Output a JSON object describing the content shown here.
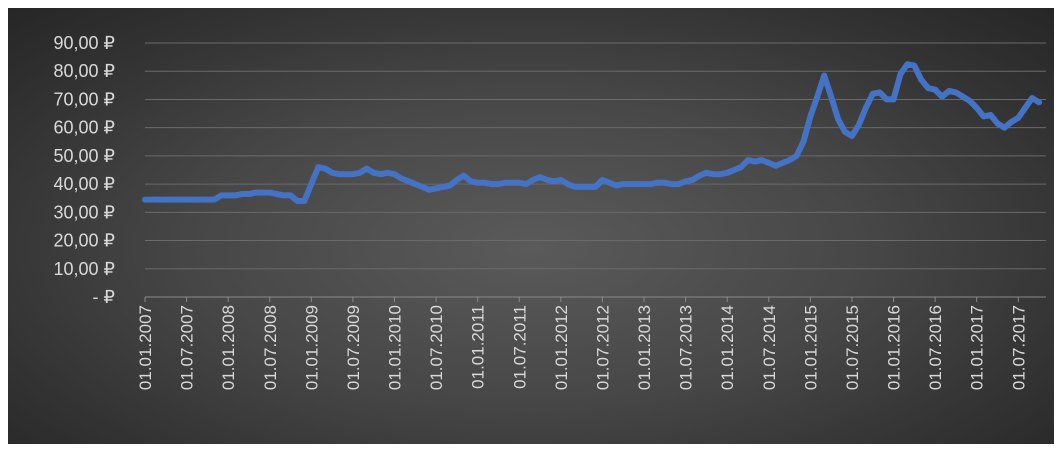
{
  "chart_data": {
    "type": "line",
    "title": "",
    "xlabel": "",
    "ylabel": "",
    "ylim": [
      0,
      90
    ],
    "grid": true,
    "legend": "none",
    "line_color": "#4472c4",
    "background_color": "#3c3c3c",
    "y_ticks": [
      {
        "value": 0,
        "label": "-   ₽"
      },
      {
        "value": 10,
        "label": "10,00 ₽"
      },
      {
        "value": 20,
        "label": "20,00 ₽"
      },
      {
        "value": 30,
        "label": "30,00 ₽"
      },
      {
        "value": 40,
        "label": "40,00 ₽"
      },
      {
        "value": 50,
        "label": "50,00 ₽"
      },
      {
        "value": 60,
        "label": "60,00 ₽"
      },
      {
        "value": 70,
        "label": "70,00 ₽"
      },
      {
        "value": 80,
        "label": "80,00 ₽"
      },
      {
        "value": 90,
        "label": "90,00 ₽"
      }
    ],
    "x_tick_labels": [
      "01.01.2007",
      "01.07.2007",
      "01.01.2008",
      "01.07.2008",
      "01.01.2009",
      "01.07.2009",
      "01.01.2010",
      "01.07.2010",
      "01.01.2011",
      "01.07.2011",
      "01.01.2012",
      "01.07.2012",
      "01.01.2013",
      "01.07.2013",
      "01.01.2014",
      "01.07.2014",
      "01.01.2015",
      "01.07.2015",
      "01.01.2016",
      "01.07.2016",
      "01.01.2017",
      "01.07.2017"
    ],
    "series": [
      {
        "points": [
          [
            "01.01.2007",
            34.5
          ],
          [
            "01.02.2007",
            34.5
          ],
          [
            "01.03.2007",
            34.5
          ],
          [
            "01.04.2007",
            34.5
          ],
          [
            "01.05.2007",
            34.5
          ],
          [
            "01.06.2007",
            34.5
          ],
          [
            "01.07.2007",
            34.5
          ],
          [
            "01.08.2007",
            34.5
          ],
          [
            "01.09.2007",
            34.5
          ],
          [
            "01.10.2007",
            34.5
          ],
          [
            "01.11.2007",
            34.5
          ],
          [
            "01.12.2007",
            36
          ],
          [
            "01.01.2008",
            36
          ],
          [
            "01.02.2008",
            36
          ],
          [
            "01.03.2008",
            36.5
          ],
          [
            "01.04.2008",
            36.5
          ],
          [
            "01.05.2008",
            37
          ],
          [
            "01.06.2008",
            37
          ],
          [
            "01.07.2008",
            37
          ],
          [
            "01.08.2008",
            36.5
          ],
          [
            "01.09.2008",
            36
          ],
          [
            "01.10.2008",
            36
          ],
          [
            "01.11.2008",
            34
          ],
          [
            "01.12.2008",
            34
          ],
          [
            "01.01.2009",
            40
          ],
          [
            "01.02.2009",
            46
          ],
          [
            "01.03.2009",
            45.5
          ],
          [
            "01.04.2009",
            44
          ],
          [
            "01.05.2009",
            43.5
          ],
          [
            "01.06.2009",
            43.5
          ],
          [
            "01.07.2009",
            43.5
          ],
          [
            "01.08.2009",
            44
          ],
          [
            "01.09.2009",
            45.5
          ],
          [
            "01.10.2009",
            44
          ],
          [
            "01.11.2009",
            43.5
          ],
          [
            "01.12.2009",
            44
          ],
          [
            "01.01.2010",
            43.5
          ],
          [
            "01.02.2010",
            42
          ],
          [
            "01.03.2010",
            41
          ],
          [
            "01.04.2010",
            40
          ],
          [
            "01.05.2010",
            39
          ],
          [
            "01.06.2010",
            38
          ],
          [
            "01.07.2010",
            38.5
          ],
          [
            "01.08.2010",
            39
          ],
          [
            "01.09.2010",
            39.5
          ],
          [
            "01.10.2010",
            41.5
          ],
          [
            "01.11.2010",
            43
          ],
          [
            "01.12.2010",
            41
          ],
          [
            "01.01.2011",
            40.5
          ],
          [
            "01.02.2011",
            40.5
          ],
          [
            "01.03.2011",
            40
          ],
          [
            "01.04.2011",
            40
          ],
          [
            "01.05.2011",
            40.5
          ],
          [
            "01.06.2011",
            40.5
          ],
          [
            "01.07.2011",
            40.5
          ],
          [
            "01.08.2011",
            40
          ],
          [
            "01.09.2011",
            41.5
          ],
          [
            "01.10.2011",
            42.5
          ],
          [
            "01.11.2011",
            41.5
          ],
          [
            "01.12.2011",
            41
          ],
          [
            "01.01.2012",
            41.5
          ],
          [
            "01.02.2012",
            40
          ],
          [
            "01.03.2012",
            39
          ],
          [
            "01.04.2012",
            39
          ],
          [
            "01.05.2012",
            39
          ],
          [
            "01.06.2012",
            39
          ],
          [
            "01.07.2012",
            41.5
          ],
          [
            "01.08.2012",
            40.5
          ],
          [
            "01.09.2012",
            39.5
          ],
          [
            "01.10.2012",
            40
          ],
          [
            "01.11.2012",
            40
          ],
          [
            "01.12.2012",
            40
          ],
          [
            "01.01.2013",
            40
          ],
          [
            "01.02.2013",
            40
          ],
          [
            "01.03.2013",
            40.5
          ],
          [
            "01.04.2013",
            40.5
          ],
          [
            "01.05.2013",
            40
          ],
          [
            "01.06.2013",
            40
          ],
          [
            "01.07.2013",
            41
          ],
          [
            "01.08.2013",
            41.5
          ],
          [
            "01.09.2013",
            43
          ],
          [
            "01.10.2013",
            44
          ],
          [
            "01.11.2013",
            43.5
          ],
          [
            "01.12.2013",
            43.5
          ],
          [
            "01.01.2014",
            44
          ],
          [
            "01.02.2014",
            45
          ],
          [
            "01.03.2014",
            46
          ],
          [
            "01.04.2014",
            48.5
          ],
          [
            "01.05.2014",
            48
          ],
          [
            "01.06.2014",
            48.5
          ],
          [
            "01.07.2014",
            47.5
          ],
          [
            "01.08.2014",
            46.5
          ],
          [
            "01.09.2014",
            47.5
          ],
          [
            "01.10.2014",
            48.5
          ],
          [
            "01.11.2014",
            50
          ],
          [
            "01.12.2014",
            55
          ],
          [
            "01.01.2015",
            64
          ],
          [
            "01.02.2015",
            71
          ],
          [
            "01.03.2015",
            78.5
          ],
          [
            "01.04.2015",
            71
          ],
          [
            "01.05.2015",
            63
          ],
          [
            "01.06.2015",
            58.5
          ],
          [
            "01.07.2015",
            57
          ],
          [
            "01.08.2015",
            61
          ],
          [
            "01.09.2015",
            67
          ],
          [
            "01.10.2015",
            72
          ],
          [
            "01.11.2015",
            72.5
          ],
          [
            "01.12.2015",
            70
          ],
          [
            "01.01.2016",
            70
          ],
          [
            "01.02.2016",
            79
          ],
          [
            "01.03.2016",
            82.5
          ],
          [
            "01.04.2016",
            82
          ],
          [
            "01.05.2016",
            77
          ],
          [
            "01.06.2016",
            74
          ],
          [
            "01.07.2016",
            73.5
          ],
          [
            "01.08.2016",
            71
          ],
          [
            "01.09.2016",
            73
          ],
          [
            "01.10.2016",
            72.5
          ],
          [
            "01.11.2016",
            71
          ],
          [
            "01.12.2016",
            69.5
          ],
          [
            "01.01.2017",
            67
          ],
          [
            "01.02.2017",
            64
          ],
          [
            "01.03.2017",
            64.5
          ],
          [
            "01.04.2017",
            61.5
          ],
          [
            "01.05.2017",
            60
          ],
          [
            "01.06.2017",
            62
          ],
          [
            "01.07.2017",
            63.5
          ],
          [
            "01.08.2017",
            67
          ],
          [
            "01.09.2017",
            70.5
          ],
          [
            "01.10.2017",
            69
          ]
        ]
      }
    ]
  }
}
